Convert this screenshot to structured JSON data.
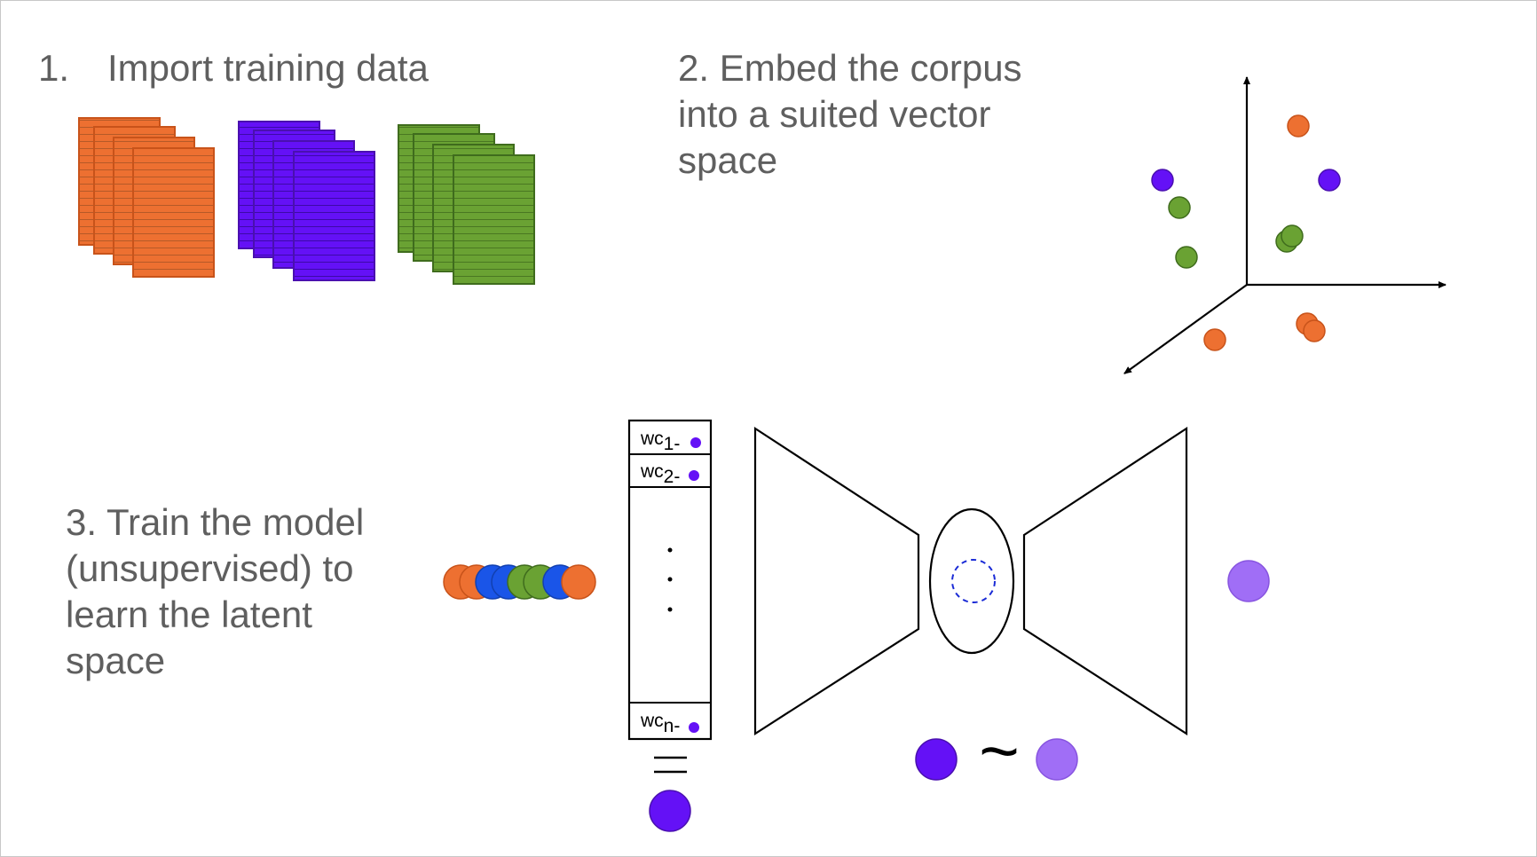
{
  "step1": {
    "number": "1.",
    "label": "Import training data"
  },
  "step2": {
    "lines": [
      "2. Embed the corpus",
      "into a suited vector",
      "space"
    ]
  },
  "step3": {
    "lines": [
      "3. Train the model",
      "(unsupervised) to",
      "learn the latent",
      "space"
    ]
  },
  "vector": {
    "rows": [
      {
        "prefix": "wc",
        "sub": "1-"
      },
      {
        "prefix": "wc",
        "sub": "2-"
      },
      {
        "prefix": "wc",
        "sub": "n-"
      }
    ]
  },
  "relation_symbol": "~",
  "colors": {
    "text": "#5f5f5f",
    "orange": "#ed7031",
    "purple": "#6411f6",
    "green": "#6aa233",
    "blue": "#1a55e8",
    "light_purple": "#a06ef6",
    "outline": "#1a1a1a"
  }
}
